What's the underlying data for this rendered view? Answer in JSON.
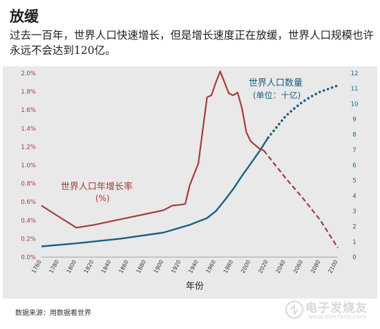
{
  "header": {
    "title": "放缓",
    "subtitle": "过去一百年，世界人口快速增长，但是增长速度正在放缓，世界人口规模也许永远不会达到120亿。"
  },
  "source": "数据来源：用数据看世界",
  "watermark": {
    "text": "电子发烧友",
    "url": "www.elecfans.com"
  },
  "colors": {
    "growth": "#a63a3a",
    "population": "#1a5f85",
    "panel": "#e9e9e9"
  },
  "chart_data": {
    "type": "line",
    "xlabel": "年份",
    "x_ticks": [
      1760,
      1780,
      1800,
      1820,
      1840,
      1860,
      1880,
      1900,
      1920,
      1940,
      1960,
      1980,
      2000,
      2020,
      2040,
      2060,
      2080,
      2100
    ],
    "x_range": [
      1760,
      2100
    ],
    "y_left": {
      "range": [
        0,
        2.0
      ],
      "tick_labels": [
        "0.0%",
        "0.2%",
        "0.4%",
        "0.6%",
        "0.8%",
        "1.0%",
        "1.2%",
        "1.4%",
        "1.6%",
        "1.8%",
        "2.0%"
      ],
      "tick_values": [
        0,
        0.2,
        0.4,
        0.6,
        0.8,
        1.0,
        1.2,
        1.4,
        1.6,
        1.8,
        2.0
      ]
    },
    "y_right": {
      "range": [
        0,
        12
      ],
      "tick_labels": [
        "0",
        "1",
        "2",
        "3",
        "4",
        "5",
        "6",
        "7",
        "8",
        "9",
        "10",
        "11",
        "12"
      ],
      "tick_values": [
        0,
        1,
        2,
        3,
        4,
        5,
        6,
        7,
        8,
        9,
        10,
        11,
        12
      ]
    },
    "series": [
      {
        "name": "世界人口年增长率",
        "unit_label": "(%)",
        "axis": "left",
        "historical": [
          [
            1760,
            0.56
          ],
          [
            1780,
            0.44
          ],
          [
            1800,
            0.32
          ],
          [
            1820,
            0.35
          ],
          [
            1840,
            0.39
          ],
          [
            1860,
            0.43
          ],
          [
            1880,
            0.47
          ],
          [
            1900,
            0.51
          ],
          [
            1910,
            0.56
          ],
          [
            1920,
            0.57
          ],
          [
            1925,
            0.58
          ],
          [
            1930,
            0.78
          ],
          [
            1940,
            1.02
          ],
          [
            1950,
            1.74
          ],
          [
            1955,
            1.76
          ],
          [
            1960,
            1.9
          ],
          [
            1965,
            2.02
          ],
          [
            1970,
            1.9
          ],
          [
            1975,
            1.78
          ],
          [
            1980,
            1.76
          ],
          [
            1985,
            1.79
          ],
          [
            1990,
            1.62
          ],
          [
            1995,
            1.36
          ],
          [
            2000,
            1.26
          ],
          [
            2005,
            1.22
          ],
          [
            2010,
            1.18
          ],
          [
            2015,
            1.16
          ]
        ],
        "projection": [
          [
            2015,
            1.16
          ],
          [
            2040,
            0.86
          ],
          [
            2060,
            0.64
          ],
          [
            2080,
            0.4
          ],
          [
            2100,
            0.1
          ]
        ]
      },
      {
        "name": "世界人口数量",
        "unit_label": "(单位：十亿)",
        "axis": "right",
        "historical": [
          [
            1760,
            0.7
          ],
          [
            1800,
            0.9
          ],
          [
            1850,
            1.2
          ],
          [
            1900,
            1.6
          ],
          [
            1930,
            2.1
          ],
          [
            1950,
            2.55
          ],
          [
            1960,
            3.0
          ],
          [
            1970,
            3.7
          ],
          [
            1980,
            4.45
          ],
          [
            1990,
            5.3
          ],
          [
            2000,
            6.1
          ],
          [
            2010,
            6.9
          ],
          [
            2020,
            7.8
          ]
        ],
        "projection": [
          [
            2020,
            7.8
          ],
          [
            2030,
            8.5
          ],
          [
            2040,
            9.2
          ],
          [
            2050,
            9.7
          ],
          [
            2060,
            10.15
          ],
          [
            2070,
            10.5
          ],
          [
            2080,
            10.8
          ],
          [
            2090,
            11.0
          ],
          [
            2100,
            11.2
          ]
        ]
      }
    ]
  }
}
